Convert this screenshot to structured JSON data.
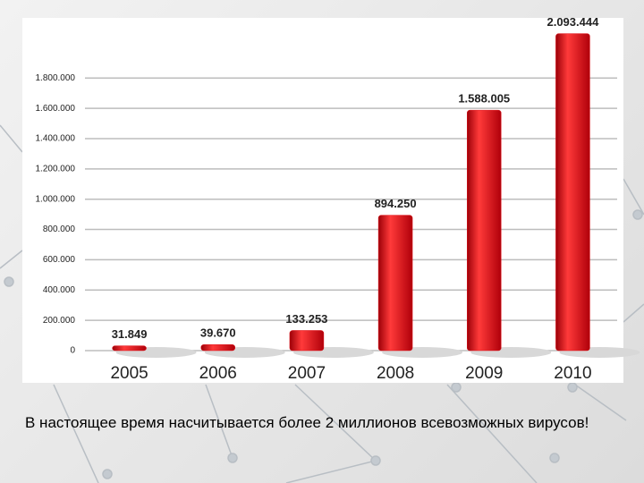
{
  "chart_data": {
    "type": "bar",
    "categories": [
      "2005",
      "2006",
      "2007",
      "2008",
      "2009",
      "2010"
    ],
    "values": [
      31849,
      39670,
      133253,
      894250,
      1588005,
      2093444
    ],
    "value_labels": [
      "31.849",
      "39.670",
      "133.253",
      "894.250",
      "1.588.005",
      "2.093.444"
    ],
    "color": "#e0141c",
    "ylim": [
      0,
      2150000
    ],
    "yticks": [
      0,
      {
        "value": 200000,
        "label": "200.000"
      },
      {
        "value": 400000,
        "label": "400.000"
      },
      {
        "value": 600000,
        "label": "600.000"
      },
      {
        "value": 800000,
        "label": "800.000"
      },
      {
        "value": 1000000,
        "label": "1.000.000"
      },
      {
        "value": 1200000,
        "label": "1.200.000"
      },
      {
        "value": 1400000,
        "label": "1.400.000"
      },
      {
        "value": 1600000,
        "label": "1.600.000"
      },
      {
        "value": 1800000,
        "label": "1.800.000"
      }
    ],
    "grid": true,
    "caption": "В настоящее время насчитывается более 2 миллионов всевозможных вирусов!"
  }
}
